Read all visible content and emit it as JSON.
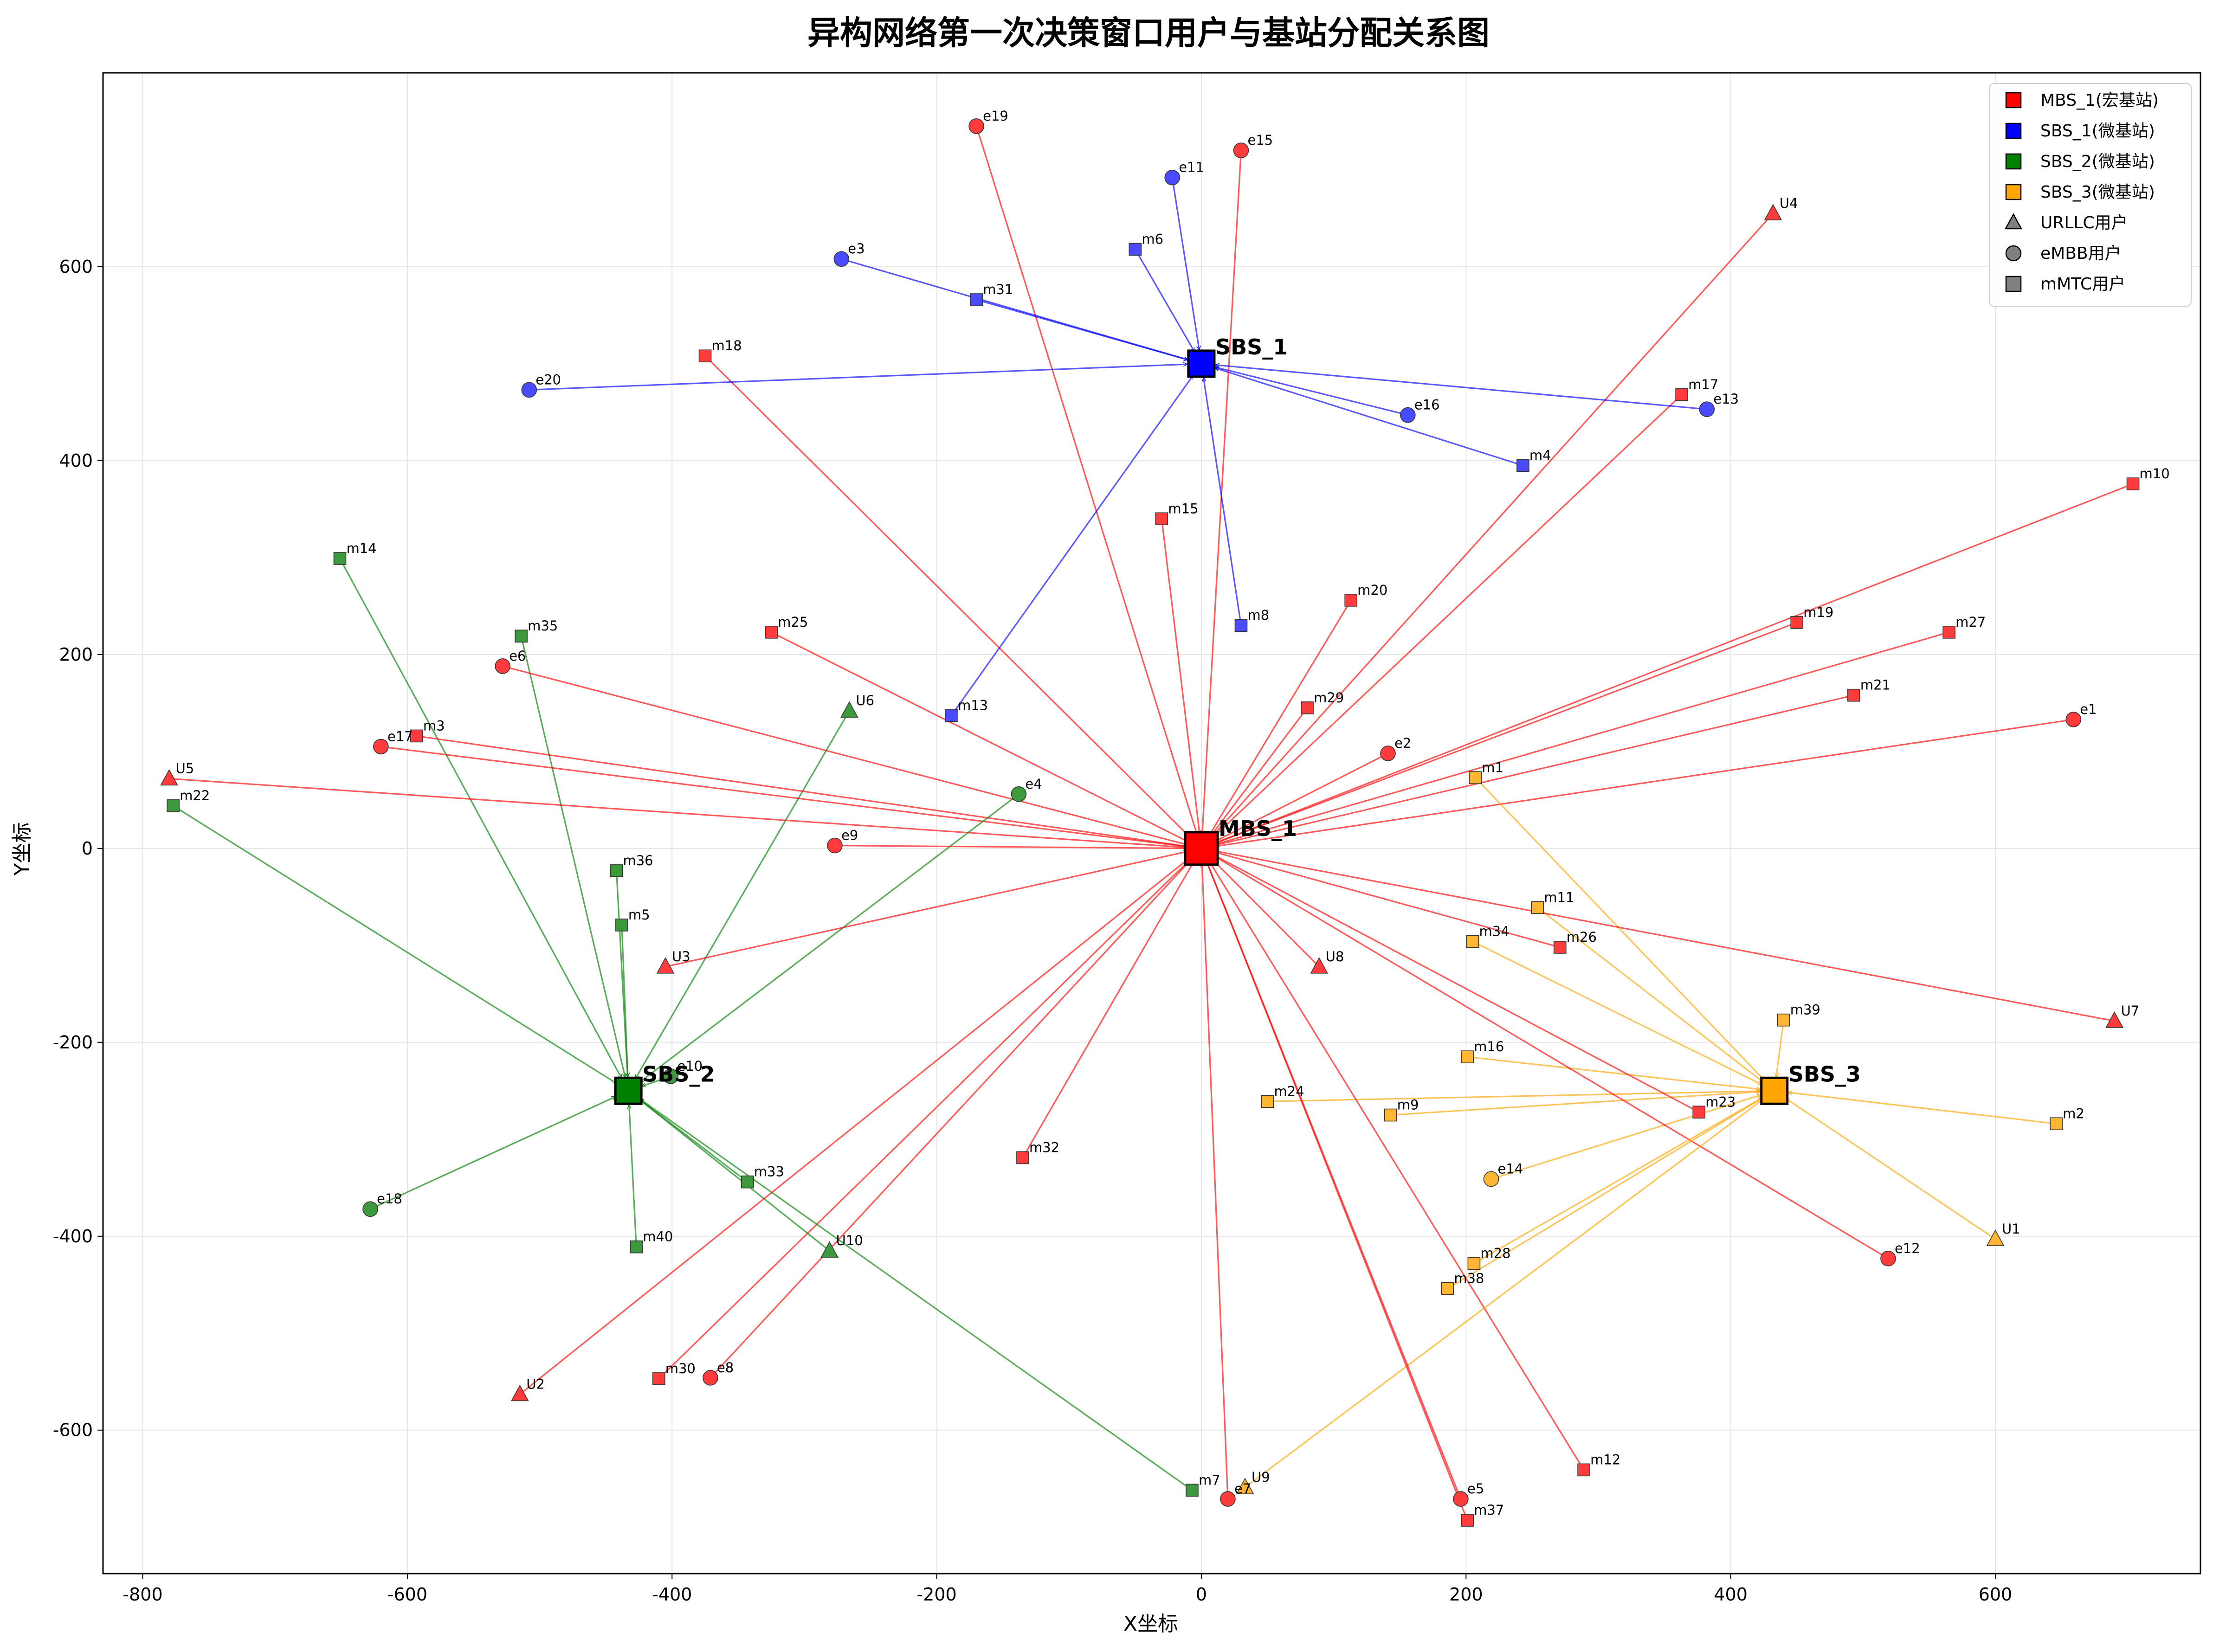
{
  "chart_data": {
    "type": "scatter",
    "title": "异构网络第一次决策窗口用户与基站分配关系图",
    "xlabel": "X坐标",
    "ylabel": "Y坐标",
    "xlim": [
      -830,
      755
    ],
    "ylim": [
      -748,
      800
    ],
    "xticks": [
      -800,
      -600,
      -400,
      -200,
      0,
      200,
      400,
      600
    ],
    "yticks": [
      -600,
      -400,
      -200,
      0,
      200,
      400,
      600
    ],
    "grid": true,
    "legend_position": "top-right",
    "legend": [
      {
        "label": "MBS_1(宏基站)",
        "shape": "square",
        "color": "#ff0000"
      },
      {
        "label": "SBS_1(微基站)",
        "shape": "square",
        "color": "#0000ff"
      },
      {
        "label": "SBS_2(微基站)",
        "shape": "square",
        "color": "#008000"
      },
      {
        "label": "SBS_3(微基站)",
        "shape": "square",
        "color": "#ffa500"
      },
      {
        "label": "URLLC用户",
        "shape": "triangle",
        "color": "#808080"
      },
      {
        "label": "eMBB用户",
        "shape": "circle",
        "color": "#808080"
      },
      {
        "label": "mMTC用户",
        "shape": "square",
        "color": "#808080"
      }
    ],
    "base_stations": [
      {
        "name": "MBS_1",
        "x": 0,
        "y": 0,
        "color": "#ff0000"
      },
      {
        "name": "SBS_1",
        "x": 0,
        "y": 500,
        "color": "#0000ff"
      },
      {
        "name": "SBS_2",
        "x": -433,
        "y": -250,
        "color": "#008000"
      },
      {
        "name": "SBS_3",
        "x": 433,
        "y": -250,
        "color": "#ffa500"
      }
    ],
    "users": [
      {
        "name": "e19",
        "type": "eMBB",
        "x": -170,
        "y": 745,
        "bs": "MBS_1"
      },
      {
        "name": "e15",
        "type": "eMBB",
        "x": 30,
        "y": 720,
        "bs": "MBS_1"
      },
      {
        "name": "e11",
        "type": "eMBB",
        "x": -22,
        "y": 692,
        "bs": "SBS_1"
      },
      {
        "name": "U4",
        "type": "URLLC",
        "x": 432,
        "y": 655,
        "bs": "MBS_1"
      },
      {
        "name": "e3",
        "type": "eMBB",
        "x": -272,
        "y": 608,
        "bs": "SBS_1"
      },
      {
        "name": "m6",
        "type": "mMTC",
        "x": -50,
        "y": 618,
        "bs": "SBS_1"
      },
      {
        "name": "m31",
        "type": "mMTC",
        "x": -170,
        "y": 566,
        "bs": "SBS_1"
      },
      {
        "name": "m18",
        "type": "mMTC",
        "x": -375,
        "y": 508,
        "bs": "MBS_1"
      },
      {
        "name": "e20",
        "type": "eMBB",
        "x": -508,
        "y": 473,
        "bs": "SBS_1"
      },
      {
        "name": "m17",
        "type": "mMTC",
        "x": 363,
        "y": 468,
        "bs": "MBS_1"
      },
      {
        "name": "e13",
        "type": "eMBB",
        "x": 382,
        "y": 453,
        "bs": "SBS_1"
      },
      {
        "name": "e16",
        "type": "eMBB",
        "x": 156,
        "y": 447,
        "bs": "SBS_1"
      },
      {
        "name": "m4",
        "type": "mMTC",
        "x": 243,
        "y": 395,
        "bs": "SBS_1"
      },
      {
        "name": "m10",
        "type": "mMTC",
        "x": 704,
        "y": 376,
        "bs": "MBS_1"
      },
      {
        "name": "m15",
        "type": "mMTC",
        "x": -30,
        "y": 340,
        "bs": "MBS_1"
      },
      {
        "name": "m14",
        "type": "mMTC",
        "x": -651,
        "y": 299,
        "bs": "SBS_2"
      },
      {
        "name": "m20",
        "type": "mMTC",
        "x": 113,
        "y": 256,
        "bs": "MBS_1"
      },
      {
        "name": "m8",
        "type": "mMTC",
        "x": 30,
        "y": 230,
        "bs": "SBS_1"
      },
      {
        "name": "m19",
        "type": "mMTC",
        "x": 450,
        "y": 233,
        "bs": "MBS_1"
      },
      {
        "name": "m27",
        "type": "mMTC",
        "x": 565,
        "y": 223,
        "bs": "MBS_1"
      },
      {
        "name": "m25",
        "type": "mMTC",
        "x": -325,
        "y": 223,
        "bs": "MBS_1"
      },
      {
        "name": "m35",
        "type": "mMTC",
        "x": -514,
        "y": 219,
        "bs": "SBS_2"
      },
      {
        "name": "e6",
        "type": "eMBB",
        "x": -528,
        "y": 188,
        "bs": "MBS_1"
      },
      {
        "name": "m21",
        "type": "mMTC",
        "x": 493,
        "y": 158,
        "bs": "MBS_1"
      },
      {
        "name": "m29",
        "type": "mMTC",
        "x": 80,
        "y": 145,
        "bs": "MBS_1"
      },
      {
        "name": "U6",
        "type": "URLLC",
        "x": -266,
        "y": 142,
        "bs": "SBS_2"
      },
      {
        "name": "m13",
        "type": "mMTC",
        "x": -189,
        "y": 137,
        "bs": "SBS_1"
      },
      {
        "name": "e1",
        "type": "eMBB",
        "x": 659,
        "y": 133,
        "bs": "MBS_1"
      },
      {
        "name": "m3",
        "type": "mMTC",
        "x": -593,
        "y": 116,
        "bs": "MBS_1"
      },
      {
        "name": "e17",
        "type": "eMBB",
        "x": -620,
        "y": 105,
        "bs": "MBS_1"
      },
      {
        "name": "e2",
        "type": "eMBB",
        "x": 141,
        "y": 98,
        "bs": "MBS_1"
      },
      {
        "name": "m1",
        "type": "mMTC",
        "x": 207,
        "y": 73,
        "bs": "SBS_3"
      },
      {
        "name": "U5",
        "type": "URLLC",
        "x": -780,
        "y": 72,
        "bs": "MBS_1"
      },
      {
        "name": "e4",
        "type": "eMBB",
        "x": -138,
        "y": 56,
        "bs": "SBS_2"
      },
      {
        "name": "m22",
        "type": "mMTC",
        "x": -777,
        "y": 44,
        "bs": "SBS_2"
      },
      {
        "name": "e9",
        "type": "eMBB",
        "x": -277,
        "y": 3,
        "bs": "MBS_1"
      },
      {
        "name": "m36",
        "type": "mMTC",
        "x": -442,
        "y": -23,
        "bs": "SBS_2"
      },
      {
        "name": "m11",
        "type": "mMTC",
        "x": 254,
        "y": -61,
        "bs": "SBS_3"
      },
      {
        "name": "m5",
        "type": "mMTC",
        "x": -438,
        "y": -79,
        "bs": "SBS_2"
      },
      {
        "name": "m34",
        "type": "mMTC",
        "x": 205,
        "y": -96,
        "bs": "SBS_3"
      },
      {
        "name": "m26",
        "type": "mMTC",
        "x": 271,
        "y": -102,
        "bs": "MBS_1"
      },
      {
        "name": "U3",
        "type": "URLLC",
        "x": -405,
        "y": -122,
        "bs": "MBS_1"
      },
      {
        "name": "U8",
        "type": "URLLC",
        "x": 89,
        "y": -122,
        "bs": "MBS_1"
      },
      {
        "name": "U7",
        "type": "URLLC",
        "x": 690,
        "y": -178,
        "bs": "MBS_1"
      },
      {
        "name": "m39",
        "type": "mMTC",
        "x": 440,
        "y": -177,
        "bs": "SBS_3"
      },
      {
        "name": "m16",
        "type": "mMTC",
        "x": 201,
        "y": -215,
        "bs": "SBS_3"
      },
      {
        "name": "e10",
        "type": "eMBB",
        "x": -401,
        "y": -235,
        "bs": "SBS_2"
      },
      {
        "name": "m24",
        "type": "mMTC",
        "x": 50,
        "y": -261,
        "bs": "SBS_3"
      },
      {
        "name": "m9",
        "type": "mMTC",
        "x": 143,
        "y": -275,
        "bs": "SBS_3"
      },
      {
        "name": "m23",
        "type": "mMTC",
        "x": 376,
        "y": -272,
        "bs": "MBS_1"
      },
      {
        "name": "m2",
        "type": "mMTC",
        "x": 646,
        "y": -284,
        "bs": "SBS_3"
      },
      {
        "name": "m32",
        "type": "mMTC",
        "x": -135,
        "y": -319,
        "bs": "MBS_1"
      },
      {
        "name": "m33",
        "type": "mMTC",
        "x": -343,
        "y": -344,
        "bs": "SBS_2"
      },
      {
        "name": "e14",
        "type": "eMBB",
        "x": 219,
        "y": -341,
        "bs": "SBS_3"
      },
      {
        "name": "e18",
        "type": "eMBB",
        "x": -628,
        "y": -372,
        "bs": "SBS_2"
      },
      {
        "name": "U1",
        "type": "URLLC",
        "x": 600,
        "y": -403,
        "bs": "SBS_3"
      },
      {
        "name": "m40",
        "type": "mMTC",
        "x": -427,
        "y": -411,
        "bs": "SBS_2"
      },
      {
        "name": "U10",
        "type": "URLLC",
        "x": -281,
        "y": -415,
        "bs": "SBS_2"
      },
      {
        "name": "e12",
        "type": "eMBB",
        "x": 519,
        "y": -423,
        "bs": "MBS_1"
      },
      {
        "name": "m28",
        "type": "mMTC",
        "x": 206,
        "y": -428,
        "bs": "SBS_3"
      },
      {
        "name": "m38",
        "type": "mMTC",
        "x": 186,
        "y": -454,
        "bs": "SBS_3"
      },
      {
        "name": "e8",
        "type": "eMBB",
        "x": -371,
        "y": -546,
        "bs": "MBS_1"
      },
      {
        "name": "m30",
        "type": "mMTC",
        "x": -410,
        "y": -547,
        "bs": "MBS_1"
      },
      {
        "name": "U2",
        "type": "URLLC",
        "x": -515,
        "y": -563,
        "bs": "MBS_1"
      },
      {
        "name": "m12",
        "type": "mMTC",
        "x": 289,
        "y": -641,
        "bs": "MBS_1"
      },
      {
        "name": "m7",
        "type": "mMTC",
        "x": -7,
        "y": -662,
        "bs": "SBS_2"
      },
      {
        "name": "U9",
        "type": "URLLC",
        "x": 33,
        "y": -659,
        "bs": "SBS_3"
      },
      {
        "name": "e7",
        "type": "eMBB",
        "x": 20,
        "y": -671,
        "bs": "MBS_1"
      },
      {
        "name": "e5",
        "type": "eMBB",
        "x": 196,
        "y": -671,
        "bs": "MBS_1"
      },
      {
        "name": "m37",
        "type": "mMTC",
        "x": 201,
        "y": -693,
        "bs": "MBS_1"
      }
    ]
  }
}
